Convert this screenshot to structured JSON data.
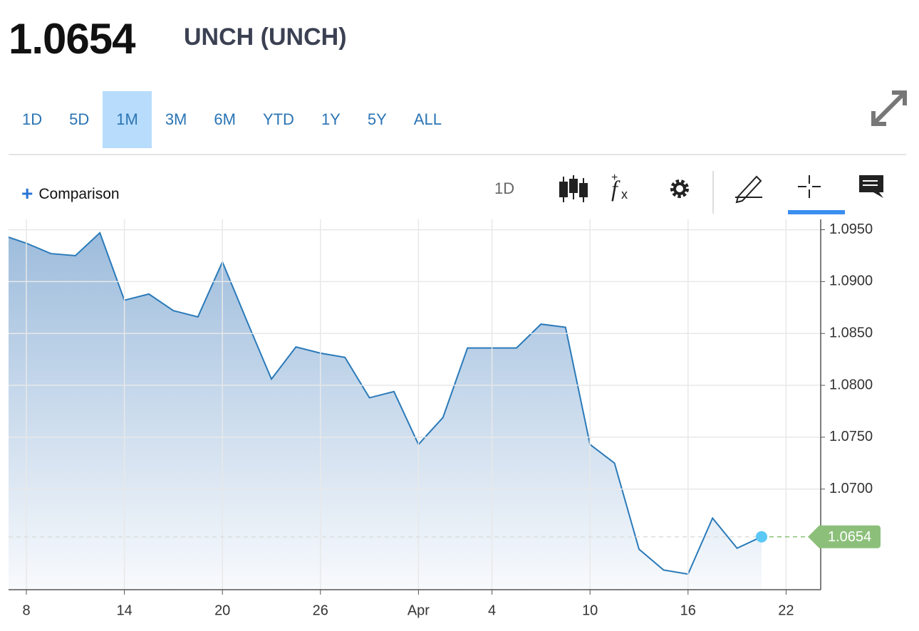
{
  "header": {
    "price": "1.0654",
    "symbol": "UNCH (UNCH)"
  },
  "tabs": [
    "1D",
    "5D",
    "1M",
    "3M",
    "6M",
    "YTD",
    "1Y",
    "5Y",
    "ALL"
  ],
  "active_tab": 2,
  "toolbar": {
    "comparison": "Comparison",
    "interval": "1D"
  },
  "chart_data": {
    "type": "area",
    "categories": [
      null,
      "8",
      null,
      null,
      null,
      "14",
      null,
      null,
      null,
      "20",
      null,
      null,
      null,
      "26",
      null,
      null,
      null,
      "Apr",
      null,
      null,
      "4",
      null,
      null,
      null,
      "10",
      null,
      null,
      null,
      "16",
      null,
      null,
      null,
      "22"
    ],
    "values": [
      1.0945,
      1.0937,
      1.0927,
      1.0925,
      1.0947,
      1.0882,
      1.0888,
      1.0872,
      1.0866,
      1.0919,
      1.0862,
      1.0806,
      1.0837,
      1.0831,
      1.0827,
      1.0788,
      1.0794,
      1.0743,
      1.0769,
      1.0836,
      1.0836,
      1.0836,
      1.0859,
      1.0856,
      1.0743,
      1.0725,
      1.0642,
      1.0622,
      1.0618,
      1.0672,
      1.0643,
      1.0654,
      null
    ],
    "color": "#2a7ab9",
    "ylim": [
      1.0603,
      1.096
    ],
    "yticks": [
      {
        "value": 1.095,
        "label": "1.0950"
      },
      {
        "value": 1.09,
        "label": "1.0900"
      },
      {
        "value": 1.085,
        "label": "1.0850"
      },
      {
        "value": 1.08,
        "label": "1.0800"
      },
      {
        "value": 1.075,
        "label": "1.0750"
      },
      {
        "value": 1.07,
        "label": "1.0700"
      }
    ],
    "grid": true,
    "last_color": "#8cc07a"
  }
}
